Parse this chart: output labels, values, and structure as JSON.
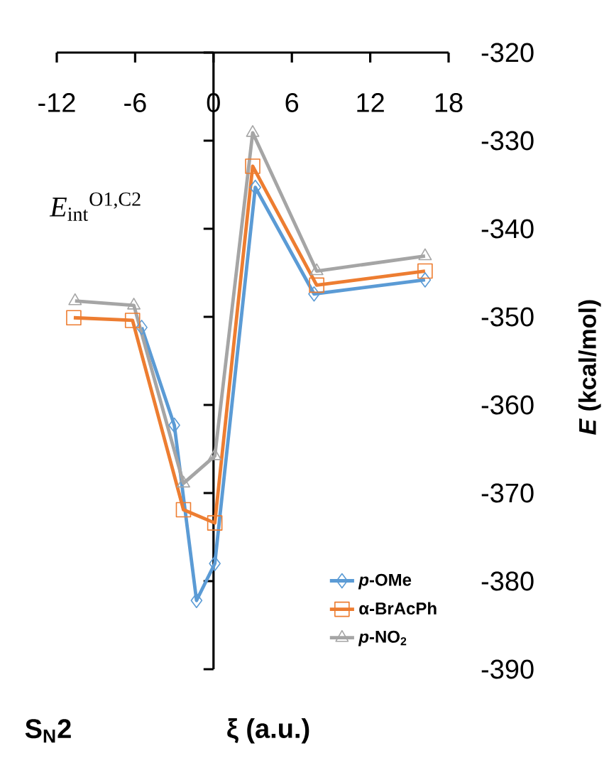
{
  "chart_data": {
    "type": "line",
    "xlabel": "ξ (a.u.)",
    "ylabel": "*E* (kcal/mol)",
    "annotations": [
      "*E*$_{int}$$^{O1,C2}$",
      "S$_{N}$2"
    ],
    "xlim": [
      -12,
      18
    ],
    "xticks": [
      -12,
      -6,
      0,
      6,
      12,
      18
    ],
    "ylim": [
      -390,
      -320
    ],
    "yticks": [
      -320,
      -330,
      -340,
      -350,
      -360,
      -370,
      -380,
      -390
    ],
    "legend": "bottom right",
    "series": [
      {
        "name": "*p*-OMe",
        "color": "#5b9bd5",
        "marker": "diamond",
        "x": [
          -5.5,
          -3.0,
          -1.3,
          0.1,
          3.2,
          7.7,
          16.2
        ],
        "values": [
          -351.2,
          -362.3,
          -382.2,
          -378.0,
          -335.3,
          -347.4,
          -345.8
        ]
      },
      {
        "name": "α-BrAcPh",
        "color": "#ed7d31",
        "marker": "square",
        "x": [
          -10.7,
          -6.2,
          -2.3,
          0.1,
          3.0,
          7.9,
          16.2
        ],
        "values": [
          -350.1,
          -350.4,
          -371.9,
          -373.4,
          -332.9,
          -346.4,
          -344.8
        ]
      },
      {
        "name": "*p*-NO$_{2}$",
        "color": "#a5a5a5",
        "marker": "triangle",
        "x": [
          -10.6,
          -6.1,
          -2.3,
          0.1,
          3.0,
          7.9,
          16.2
        ],
        "values": [
          -348.2,
          -348.7,
          -368.9,
          -365.8,
          -329.1,
          -344.8,
          -343.1
        ]
      }
    ]
  }
}
